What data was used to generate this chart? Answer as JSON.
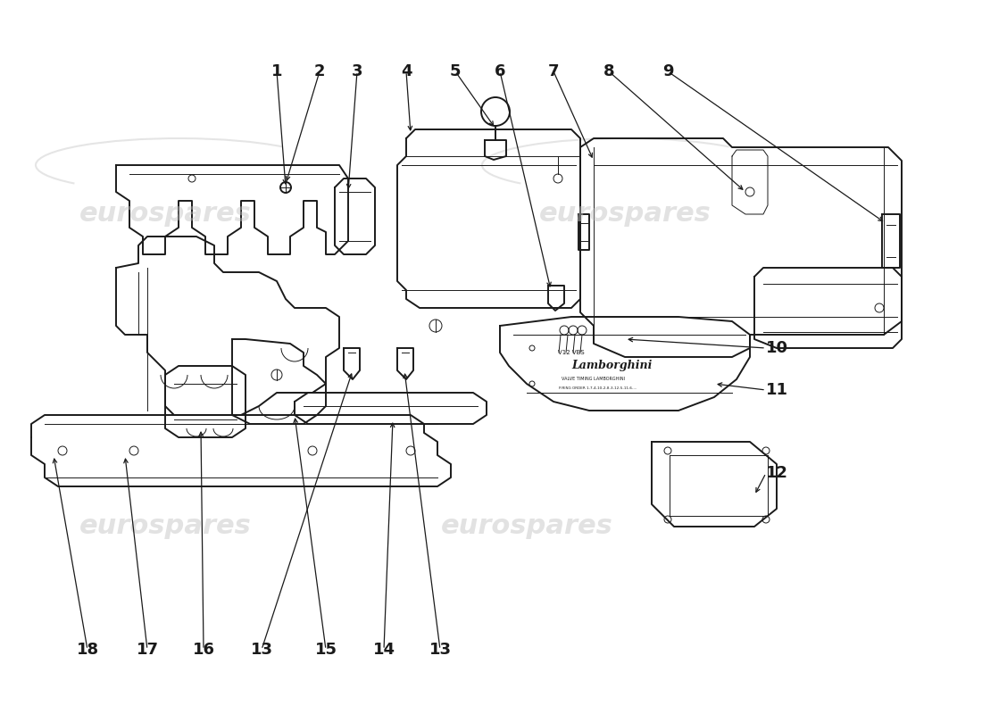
{
  "bg_color": "#ffffff",
  "line_color": "#1a1a1a",
  "lw_main": 1.4,
  "lw_thin": 0.7,
  "lw_inner": 0.6,
  "watermark_positions": [
    [
      185,
      590,
      "eurospares"
    ],
    [
      590,
      590,
      "eurospares"
    ],
    [
      185,
      240,
      "eurospares"
    ],
    [
      700,
      240,
      "eurospares"
    ]
  ],
  "top_labels": [
    [
      "1",
      310,
      80
    ],
    [
      "2",
      358,
      80
    ],
    [
      "3",
      400,
      80
    ],
    [
      "4",
      455,
      80
    ],
    [
      "5",
      510,
      80
    ],
    [
      "6",
      560,
      80
    ],
    [
      "7",
      620,
      80
    ],
    [
      "8",
      682,
      80
    ],
    [
      "9",
      748,
      80
    ]
  ],
  "right_labels": [
    [
      "10",
      858,
      390
    ],
    [
      "11",
      858,
      437
    ],
    [
      "12",
      858,
      530
    ]
  ],
  "bottom_labels": [
    [
      "18",
      98,
      728
    ],
    [
      "17",
      165,
      728
    ],
    [
      "16",
      228,
      728
    ],
    [
      "13",
      293,
      728
    ],
    [
      "15",
      365,
      728
    ],
    [
      "14",
      430,
      728
    ],
    [
      "13",
      493,
      728
    ]
  ]
}
